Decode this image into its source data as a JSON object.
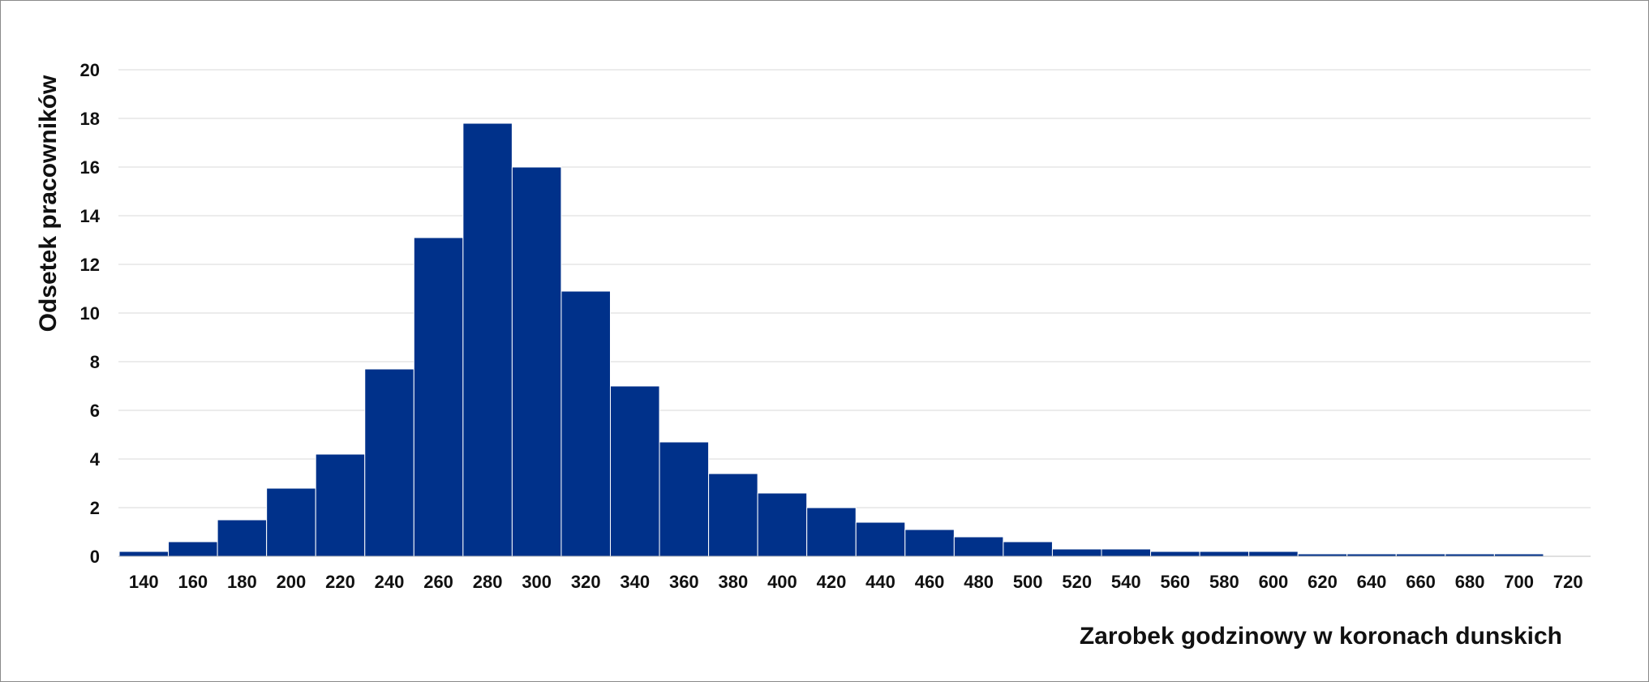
{
  "chart_data": {
    "type": "bar",
    "title": "",
    "xlabel": "Zarobek godzinowy w koronach dunskich",
    "ylabel": "Odsetek pracowników",
    "ylim": [
      0,
      20
    ],
    "yticks": [
      0,
      2,
      4,
      6,
      8,
      10,
      12,
      14,
      16,
      18,
      20
    ],
    "grid": true,
    "legend": "none",
    "bar_color": "#00318a",
    "categories": [
      "140",
      "160",
      "180",
      "200",
      "220",
      "240",
      "260",
      "280",
      "300",
      "320",
      "340",
      "360",
      "380",
      "400",
      "420",
      "440",
      "460",
      "480",
      "500",
      "520",
      "540",
      "560",
      "580",
      "600",
      "620",
      "640",
      "660",
      "680",
      "700",
      "720"
    ],
    "values": [
      0.2,
      0.6,
      1.5,
      2.8,
      4.2,
      7.7,
      13.1,
      17.8,
      16.0,
      10.9,
      7.0,
      4.7,
      3.4,
      2.6,
      2.0,
      1.4,
      1.1,
      0.8,
      0.6,
      0.3,
      0.3,
      0.2,
      0.2,
      0.2,
      0.1,
      0.1,
      0.1,
      0.1,
      0.1,
      0
    ]
  }
}
